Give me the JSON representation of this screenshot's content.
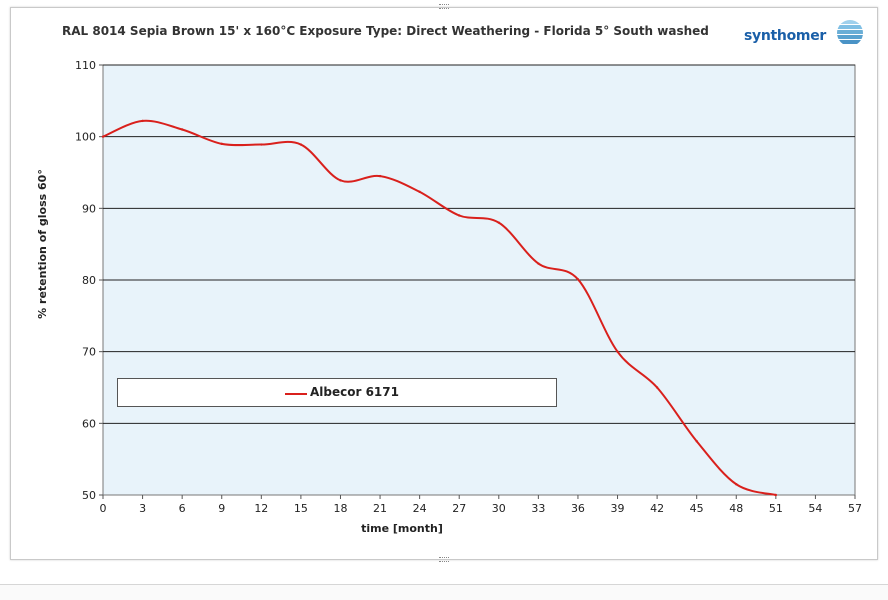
{
  "chart_data": {
    "type": "line",
    "title": "RAL 8014 Sepia Brown  15' x 160°C  Exposure Type: Direct Weathering - Florida 5° South  washed",
    "xlabel": "time [month]",
    "ylabel": "% retention of gloss 60°",
    "xlim": [
      0,
      57
    ],
    "ylim": [
      50,
      110
    ],
    "xticks": [
      0,
      3,
      6,
      9,
      12,
      15,
      18,
      21,
      24,
      27,
      30,
      33,
      36,
      39,
      42,
      45,
      48,
      51,
      54,
      57
    ],
    "yticks": [
      50,
      60,
      70,
      80,
      90,
      100,
      110
    ],
    "grid": "horizontal",
    "legend_position": "lower-left",
    "series": [
      {
        "name": "Albecor 6171",
        "color": "#d9201c",
        "x": [
          0,
          3,
          6,
          9,
          12,
          15,
          18,
          21,
          24,
          27,
          30,
          33,
          36,
          39,
          42,
          45,
          48,
          51
        ],
        "y": [
          100,
          102.2,
          101,
          99,
          98.9,
          98.9,
          93.9,
          94.5,
          92.3,
          89,
          88,
          82.3,
          80.1,
          70,
          65,
          57.5,
          51.5,
          50
        ]
      }
    ]
  },
  "brand": {
    "name": "synthomer",
    "colors": {
      "text": "#1a5fa8",
      "mark": "#6aaed6"
    }
  },
  "plot_colors": {
    "background": "#e8f3fa",
    "grid": "#222222"
  }
}
